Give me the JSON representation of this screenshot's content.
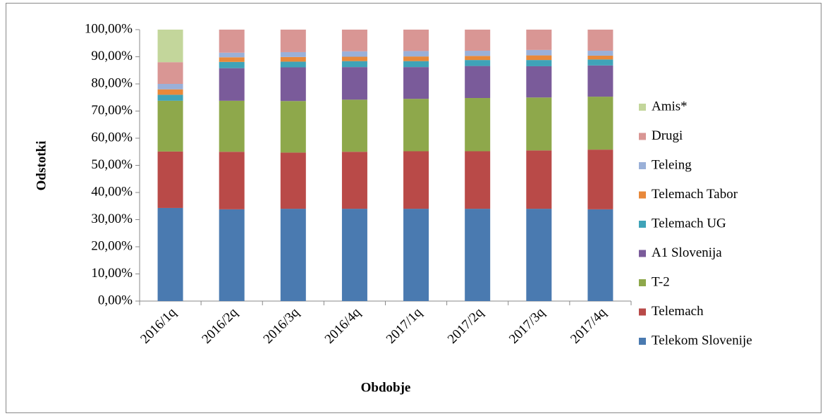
{
  "chart_data": {
    "type": "stacked_bar",
    "xlabel": "Obdobje",
    "ylabel": "Odstotki",
    "categories": [
      "2016/1q",
      "2016/2q",
      "2016/3q",
      "2016/4q",
      "2017/1q",
      "2017/2q",
      "2017/3q",
      "2017/4q"
    ],
    "series": [
      {
        "name": "Telekom Slovenije",
        "color": "#4a7ab0",
        "values": [
          34.3,
          33.8,
          34.0,
          34.0,
          34.0,
          34.0,
          34.0,
          33.8
        ]
      },
      {
        "name": "Telemach",
        "color": "#b94a48",
        "values": [
          20.8,
          21.2,
          20.7,
          21.0,
          21.2,
          21.2,
          21.5,
          22.0
        ]
      },
      {
        "name": "T-2",
        "color": "#8ea84b",
        "values": [
          18.7,
          18.8,
          19.0,
          19.2,
          19.3,
          19.6,
          19.5,
          19.5
        ]
      },
      {
        "name": "A1 Slovenija",
        "color": "#7a5b9a",
        "values": [
          0,
          12.0,
          12.4,
          12.0,
          11.7,
          11.8,
          11.5,
          11.5
        ]
      },
      {
        "name": "Telemach UG",
        "color": "#3fa3b8",
        "values": [
          2.2,
          2.3,
          2.1,
          2.2,
          2.2,
          2.2,
          2.3,
          2.2
        ]
      },
      {
        "name": "Telemach Tabor",
        "color": "#e8883a",
        "values": [
          2.0,
          1.7,
          1.7,
          1.6,
          1.7,
          1.5,
          1.7,
          1.4
        ]
      },
      {
        "name": "Teleing",
        "color": "#9ab0d8",
        "values": [
          2.0,
          1.7,
          1.8,
          2.0,
          2.0,
          1.9,
          2.0,
          1.8
        ]
      },
      {
        "name": "Drugi",
        "color": "#d99694",
        "values": [
          8.0,
          8.5,
          8.3,
          8.0,
          7.9,
          7.8,
          7.5,
          7.8
        ]
      },
      {
        "name": "Amis*",
        "color": "#c3d69b",
        "values": [
          12.0,
          0,
          0,
          0,
          0,
          0,
          0,
          0
        ]
      }
    ],
    "ylim": [
      0,
      100
    ],
    "yticks": [
      {
        "value": 0,
        "label": "0,00%"
      },
      {
        "value": 10,
        "label": "10,00%"
      },
      {
        "value": 20,
        "label": "20,00%"
      },
      {
        "value": 30,
        "label": "30,00%"
      },
      {
        "value": 40,
        "label": "40,00%"
      },
      {
        "value": 50,
        "label": "50,00%"
      },
      {
        "value": 60,
        "label": "60,00%"
      },
      {
        "value": 70,
        "label": "70,00%"
      },
      {
        "value": 80,
        "label": "80,00%"
      },
      {
        "value": 90,
        "label": "90,00%"
      },
      {
        "value": 100,
        "label": "100,00%"
      }
    ],
    "legend": "right"
  }
}
